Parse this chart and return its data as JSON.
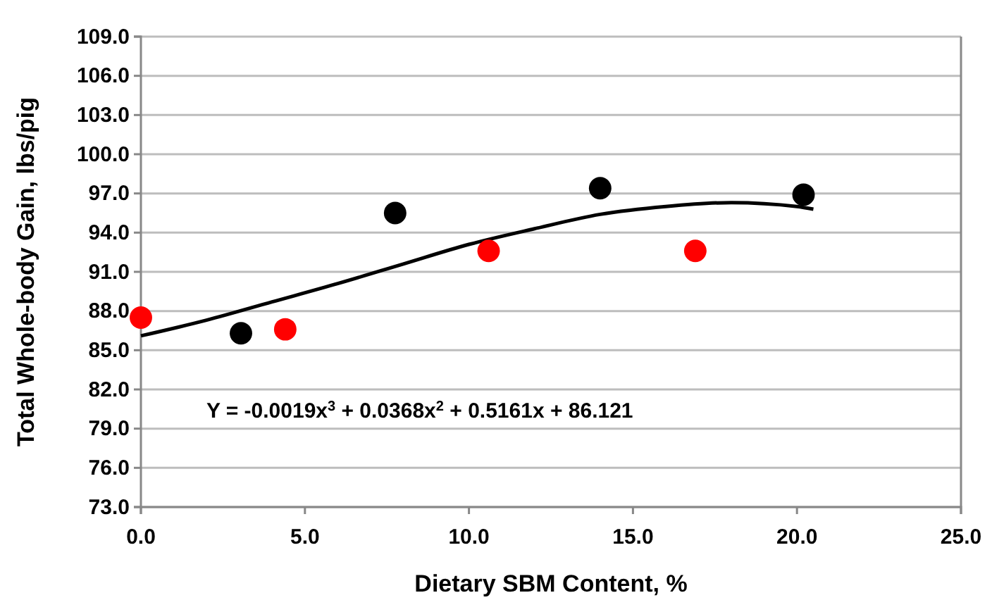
{
  "chart_data": {
    "type": "scatter",
    "xlabel": "Dietary SBM Content, %",
    "ylabel": "Total Whole-body Gain, lbs/pig",
    "xlim": [
      0,
      25
    ],
    "xticks": [
      {
        "value": 0,
        "label": "0.0"
      },
      {
        "value": 5,
        "label": "5.0"
      },
      {
        "value": 10,
        "label": "10.0"
      },
      {
        "value": 15,
        "label": "15.0"
      },
      {
        "value": 20,
        "label": "20.0"
      },
      {
        "value": 25,
        "label": "25.0"
      }
    ],
    "ylim": [
      73,
      109
    ],
    "yticks": [
      {
        "value": 73,
        "label": "73.0"
      },
      {
        "value": 76,
        "label": "76.0"
      },
      {
        "value": 79,
        "label": "79.0"
      },
      {
        "value": 82,
        "label": "82.0"
      },
      {
        "value": 85,
        "label": "85.0"
      },
      {
        "value": 88,
        "label": "88.0"
      },
      {
        "value": 91,
        "label": "91.0"
      },
      {
        "value": 94,
        "label": "94.0"
      },
      {
        "value": 97,
        "label": "97.0"
      },
      {
        "value": 100,
        "label": "100.0"
      },
      {
        "value": 103,
        "label": "103.0"
      },
      {
        "value": 106,
        "label": "106.0"
      },
      {
        "value": 109,
        "label": "109.0"
      }
    ],
    "grid": "y",
    "marker": "circle",
    "series": [
      {
        "type": "line",
        "color": "#000000",
        "line_style": "solid",
        "marker": "none",
        "x": [
          0,
          2,
          4,
          6,
          8,
          10,
          12,
          14,
          16,
          18,
          20,
          20.5
        ],
        "values": [
          86.1,
          87.3,
          88.7,
          90.1,
          91.6,
          93.1,
          94.3,
          95.4,
          96.0,
          96.3,
          96.0,
          95.8
        ]
      },
      {
        "color": "#ff0000",
        "x": [
          0,
          4.4,
          10.6,
          16.9
        ],
        "values": [
          87.5,
          86.6,
          92.6,
          92.6
        ]
      },
      {
        "color": "#000000",
        "x": [
          3.05,
          7.75,
          14.0,
          20.2
        ],
        "values": [
          86.3,
          95.5,
          97.4,
          96.9
        ]
      }
    ],
    "annotations": [
      "Y = -0.0019x$^{3}$ + 0.0368x$^{2}$ + 0.5161x + 86.121"
    ]
  }
}
